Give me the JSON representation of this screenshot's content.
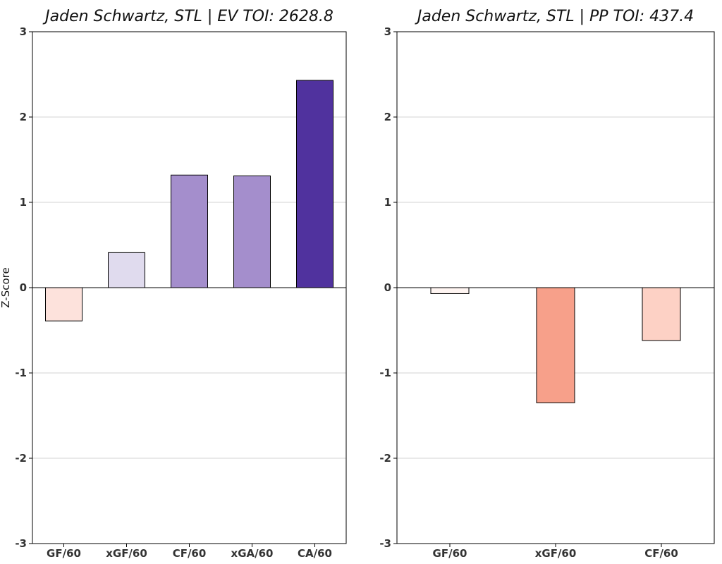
{
  "chart_data": [
    {
      "type": "bar",
      "title": "Jaden Schwartz, STL  |  EV TOI: 2628.8",
      "xlabel": "",
      "ylabel": "Z-Score",
      "ylim": [
        -3,
        3
      ],
      "yticks": [
        -3,
        -2,
        -1,
        0,
        1,
        2,
        3
      ],
      "grid": "horizontal",
      "categories": [
        "GF/60",
        "xGF/60",
        "CF/60",
        "xGA/60",
        "CA/60"
      ],
      "values": [
        -0.39,
        0.41,
        1.32,
        1.31,
        2.43
      ],
      "colors": [
        "#fde2dc",
        "#e0dbee",
        "#a48ecc",
        "#a48ecc",
        "#50329e"
      ]
    },
    {
      "type": "bar",
      "title": "Jaden Schwartz, STL  |  PP TOI: 437.4",
      "xlabel": "",
      "ylabel": "",
      "ylim": [
        -3,
        3
      ],
      "yticks": [
        -3,
        -2,
        -1,
        0,
        1,
        2,
        3
      ],
      "grid": "horizontal",
      "categories": [
        "GF/60",
        "xGF/60",
        "CF/60"
      ],
      "values": [
        -0.07,
        -1.35,
        -0.62
      ],
      "colors": [
        "#fff5f2",
        "#f7a08a",
        "#fdd1c5"
      ]
    }
  ]
}
